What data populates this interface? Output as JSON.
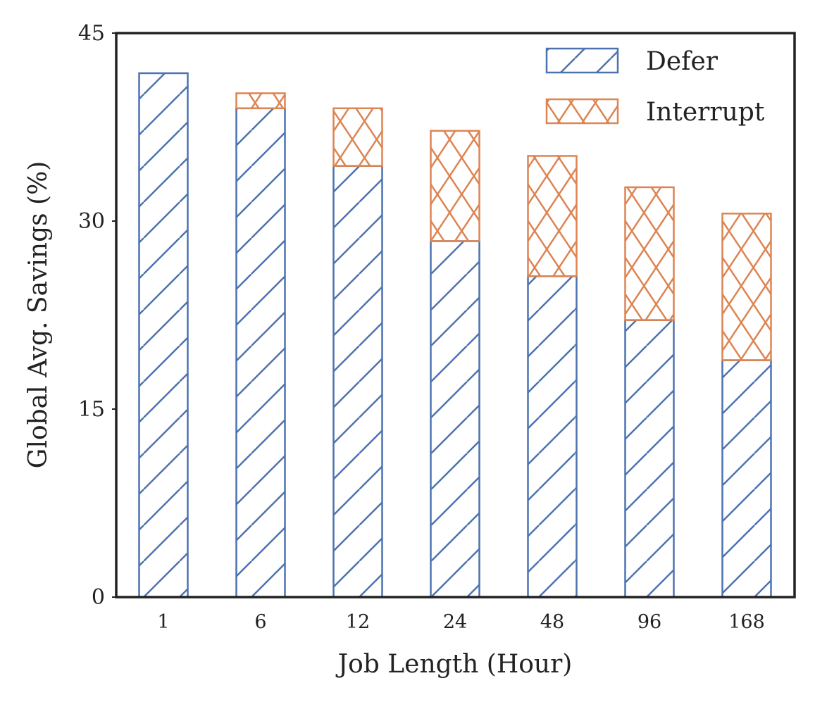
{
  "chart_data": {
    "type": "bar",
    "stacked": true,
    "categories": [
      "1",
      "6",
      "12",
      "24",
      "48",
      "96",
      "168"
    ],
    "series": [
      {
        "name": "Defer",
        "values": [
          41.8,
          39.0,
          34.4,
          28.4,
          25.6,
          22.1,
          18.9
        ],
        "color": "#4c72b0",
        "hatch": "diagonal"
      },
      {
        "name": "Interrupt",
        "values": [
          0.0,
          1.2,
          4.6,
          8.8,
          9.6,
          10.6,
          11.7
        ],
        "color": "#dd8452",
        "hatch": "crosshatch"
      }
    ],
    "xlabel": "Job Length (Hour)",
    "ylabel": "Global Avg. Savings (%)",
    "ylim": [
      0,
      45
    ],
    "yticks": [
      "0",
      "15",
      "30",
      "45"
    ],
    "grid": false,
    "legend_position": "top-right"
  }
}
